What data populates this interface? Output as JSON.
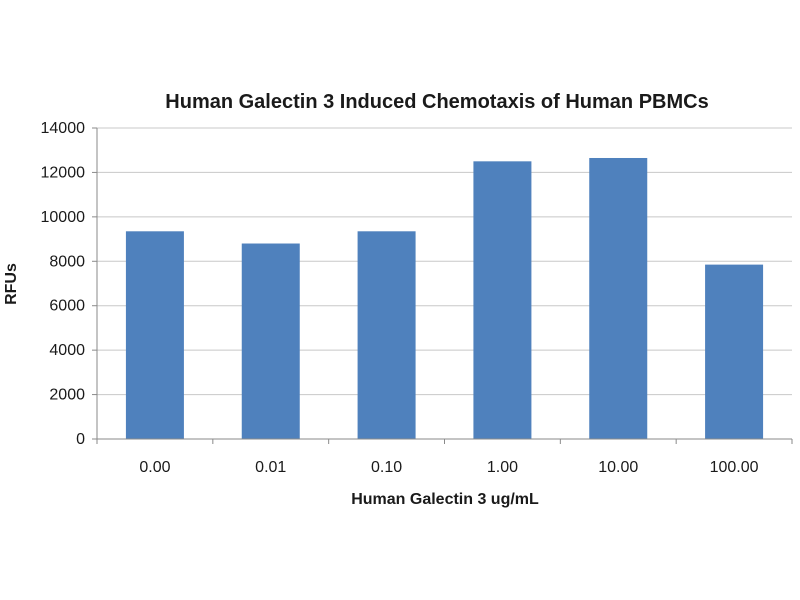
{
  "chart_data": {
    "type": "bar",
    "title": "Human Galectin 3 Induced Chemotaxis of Human PBMCs",
    "xlabel": "Human Galectin 3 ug/mL",
    "ylabel": "RFUs",
    "categories": [
      "0.00",
      "0.01",
      "0.10",
      "1.00",
      "10.00",
      "100.00"
    ],
    "values": [
      9350,
      8800,
      9350,
      12500,
      12650,
      7850
    ],
    "ylim": [
      0,
      14000
    ],
    "yticks": [
      0,
      2000,
      4000,
      6000,
      8000,
      10000,
      12000,
      14000
    ],
    "grid": true,
    "legend": "none",
    "colors": {
      "bar": "#4f81bd"
    }
  }
}
